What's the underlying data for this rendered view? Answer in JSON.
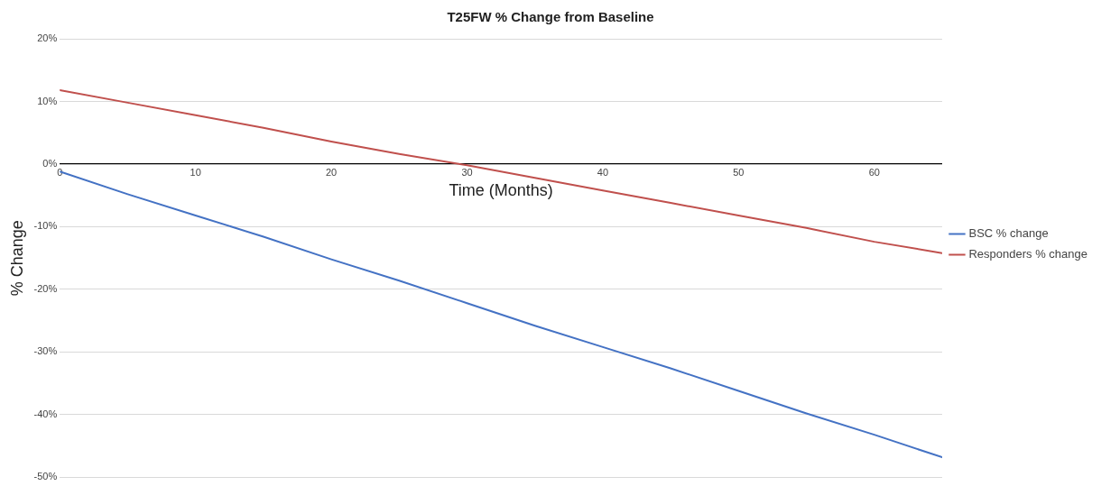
{
  "chart_data": {
    "type": "line",
    "title": "T25FW % Change from Baseline",
    "xlabel": "Time (Months)",
    "ylabel": "% Change",
    "x": [
      0,
      5,
      10,
      15,
      20,
      25,
      30,
      35,
      40,
      45,
      50,
      55,
      60,
      65
    ],
    "series": [
      {
        "name": "BSC % change",
        "color": "#4472c4",
        "values": [
          -1.2,
          -4.8,
          -8.2,
          -11.6,
          -15.2,
          -18.6,
          -22.2,
          -25.8,
          -29.2,
          -32.6,
          -36.2,
          -39.8,
          -43.2,
          -46.8
        ]
      },
      {
        "name": "Responders % change",
        "color": "#c0504d",
        "values": [
          11.8,
          9.8,
          7.8,
          5.8,
          3.6,
          1.6,
          -0.2,
          -2.2,
          -4.2,
          -6.2,
          -8.2,
          -10.2,
          -12.4,
          -14.2
        ]
      }
    ],
    "xlim": [
      0,
      65
    ],
    "xticks": [
      0,
      10,
      20,
      30,
      40,
      50,
      60
    ],
    "ylim": [
      -50,
      20
    ],
    "yticks": [
      {
        "value": -50,
        "label": "-50%"
      },
      {
        "value": -40,
        "label": "-40%"
      },
      {
        "value": -30,
        "label": "-30%"
      },
      {
        "value": -20,
        "label": "-20%"
      },
      {
        "value": -10,
        "label": "-10%"
      },
      {
        "value": 0,
        "label": "0%"
      },
      {
        "value": 10,
        "label": "10%"
      },
      {
        "value": 20,
        "label": "20%"
      }
    ],
    "grid": "y",
    "legend": "right",
    "marker": "none",
    "line_style": "solid"
  }
}
